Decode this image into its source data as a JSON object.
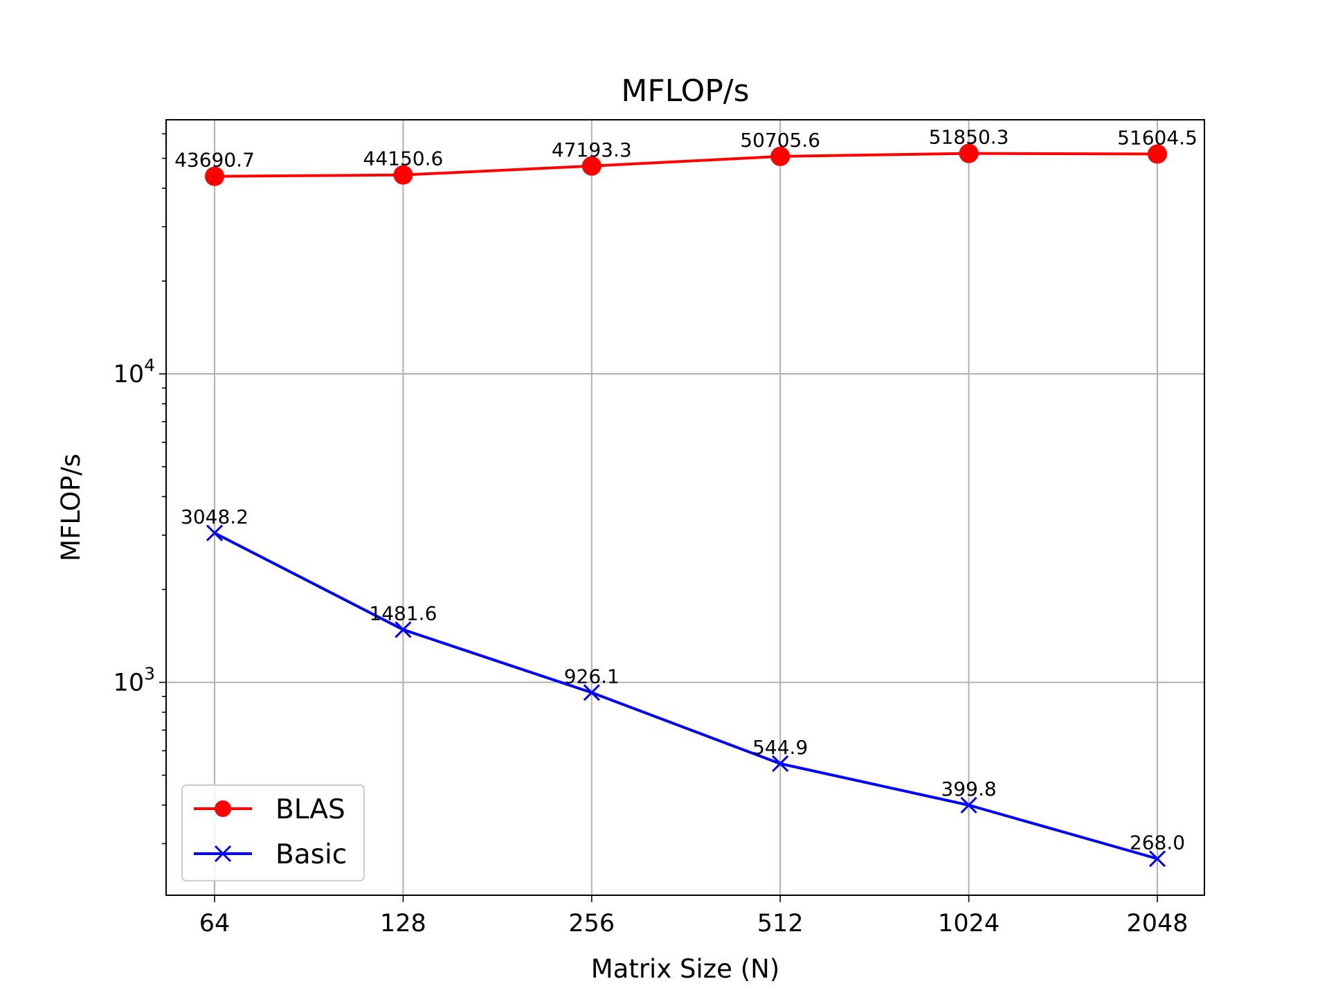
{
  "chart_data": {
    "type": "line",
    "title": "MFLOP/s",
    "xlabel": "Matrix Size (N)",
    "ylabel": "MFLOP/s",
    "yscale": "log",
    "ylim": [
      200,
      75000
    ],
    "grid": true,
    "legend_position": "lower-left",
    "categories": [
      "64",
      "128",
      "256",
      "512",
      "1024",
      "2048"
    ],
    "y_tick_values": [
      1000,
      10000
    ],
    "y_tick_labels": [
      {
        "base": "10",
        "exp": "3"
      },
      {
        "base": "10",
        "exp": "4"
      }
    ],
    "series": [
      {
        "name": "BLAS",
        "color": "#ff0000",
        "marker": "circle",
        "values": [
          43690.7,
          44150.6,
          47193.3,
          50705.6,
          51850.3,
          51604.5
        ],
        "labels": [
          "43690.7",
          "44150.6",
          "47193.3",
          "50705.6",
          "51850.3",
          "51604.5"
        ]
      },
      {
        "name": "Basic",
        "color": "#0000ff",
        "marker": "x",
        "values": [
          3048.2,
          1481.6,
          926.1,
          544.9,
          399.8,
          268.0
        ],
        "labels": [
          "3048.2",
          "1481.6",
          "926.1",
          "544.9",
          "399.8",
          "268.0"
        ]
      }
    ]
  }
}
